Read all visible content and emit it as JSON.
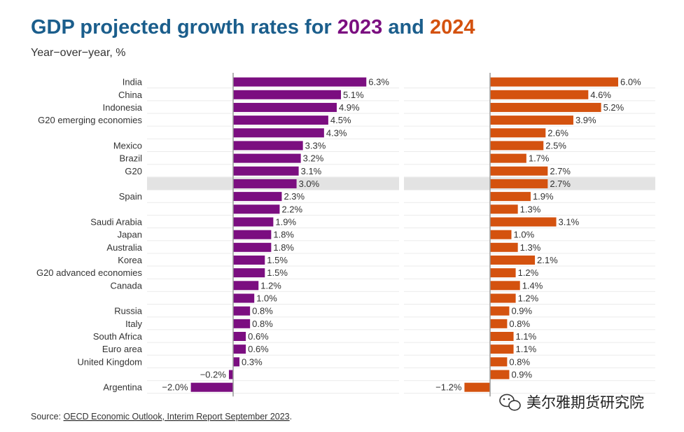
{
  "chart_data": {
    "type": "bar",
    "orientation": "horizontal",
    "title": {
      "prefix": "GDP projected growth rates for ",
      "year1": "2023",
      "connector": " and ",
      "year2": "2024"
    },
    "subtitle": "Year−over−year, %",
    "value_suffix": "%",
    "highlight_row": 8,
    "categories": [
      "India",
      "China",
      "Indonesia",
      "G20 emerging economies",
      "",
      "Mexico",
      "Brazil",
      "G20",
      "",
      "Spain",
      "",
      "Saudi Arabia",
      "Japan",
      "Australia",
      "Korea",
      "G20 advanced economies",
      "Canada",
      "",
      "Russia",
      "Italy",
      "South Africa",
      "Euro area",
      "United Kingdom",
      "",
      "Argentina"
    ],
    "series": [
      {
        "name": "2023",
        "color": "#7B0E80",
        "values": [
          6.3,
          5.1,
          4.9,
          4.5,
          4.3,
          3.3,
          3.2,
          3.1,
          3.0,
          2.3,
          2.2,
          1.9,
          1.8,
          1.8,
          1.5,
          1.5,
          1.2,
          1.0,
          0.8,
          0.8,
          0.6,
          0.6,
          0.3,
          -0.2,
          -2.0
        ]
      },
      {
        "name": "2024",
        "color": "#D4520F",
        "values": [
          6.0,
          4.6,
          5.2,
          3.9,
          2.6,
          2.5,
          1.7,
          2.7,
          2.7,
          1.9,
          1.3,
          3.1,
          1.0,
          1.3,
          2.1,
          1.2,
          1.4,
          1.2,
          0.9,
          0.8,
          1.1,
          1.1,
          0.8,
          0.9,
          -1.2
        ]
      }
    ],
    "source": {
      "prefix": "Source: ",
      "link": "OECD Economic Outlook, Interim Report September 2023",
      "suffix": "."
    }
  },
  "colors": {
    "title_blue": "#1B5E8C",
    "purple": "#7B0E80",
    "orange": "#D4520F",
    "highlight": "#E3E3E3",
    "axis": "#999999",
    "grid": "#EBEBEB"
  },
  "watermark": {
    "icon": "wechat-icon",
    "text": "美尔雅期货研究院"
  }
}
